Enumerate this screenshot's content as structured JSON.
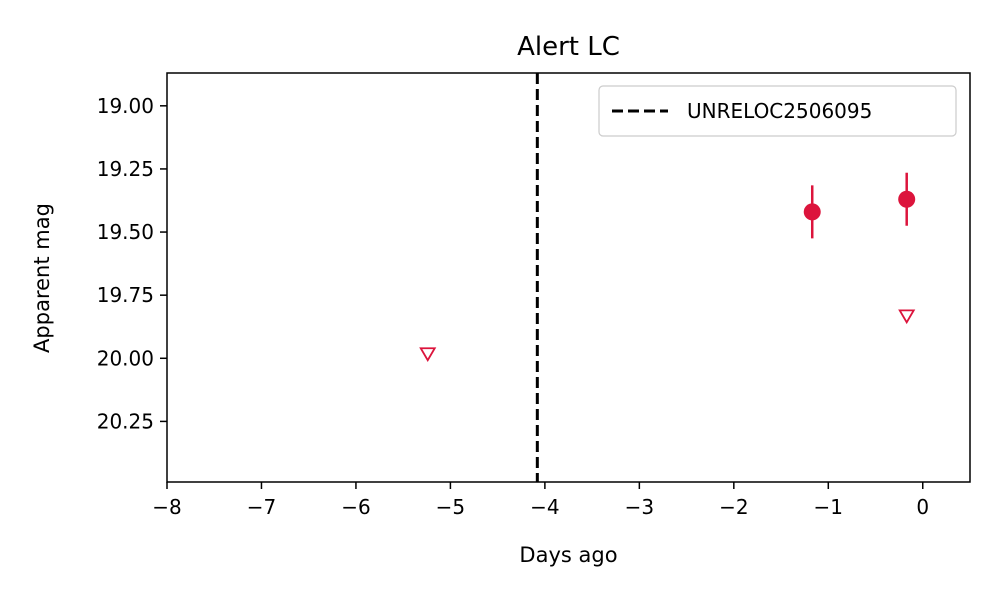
{
  "chart_data": {
    "type": "scatter",
    "title": "Alert LC",
    "xlabel": "Days ago",
    "ylabel": "Apparent mag",
    "xlim": [
      -8,
      0.5
    ],
    "ylim": [
      20.49,
      18.87
    ],
    "y_inverted": true,
    "grid": false,
    "x_ticks": [
      -8,
      -7,
      -6,
      -5,
      -4,
      -3,
      -2,
      -1,
      0
    ],
    "x_tick_labels": [
      "−8",
      "−7",
      "−6",
      "−5",
      "−4",
      "−3",
      "−2",
      "−1",
      "0"
    ],
    "y_ticks": [
      19.0,
      19.25,
      19.5,
      19.75,
      20.0,
      20.25
    ],
    "y_tick_labels": [
      "19.00",
      "19.25",
      "19.50",
      "19.75",
      "20.00",
      "20.25"
    ],
    "legend_placement": "upper right",
    "colors": {
      "detection": "#dc143c",
      "marker_line": "#000000"
    },
    "detections": [
      {
        "x": -1.17,
        "y": 19.42,
        "err": 0.105
      },
      {
        "x": -0.17,
        "y": 19.37,
        "err": 0.105
      }
    ],
    "upper_limits": [
      {
        "x": -5.24,
        "y": 19.98
      },
      {
        "x": -0.17,
        "y": 19.83
      }
    ],
    "vline": {
      "x": -4.08,
      "label": "UNRELOC2506095",
      "style": "dashed"
    }
  }
}
